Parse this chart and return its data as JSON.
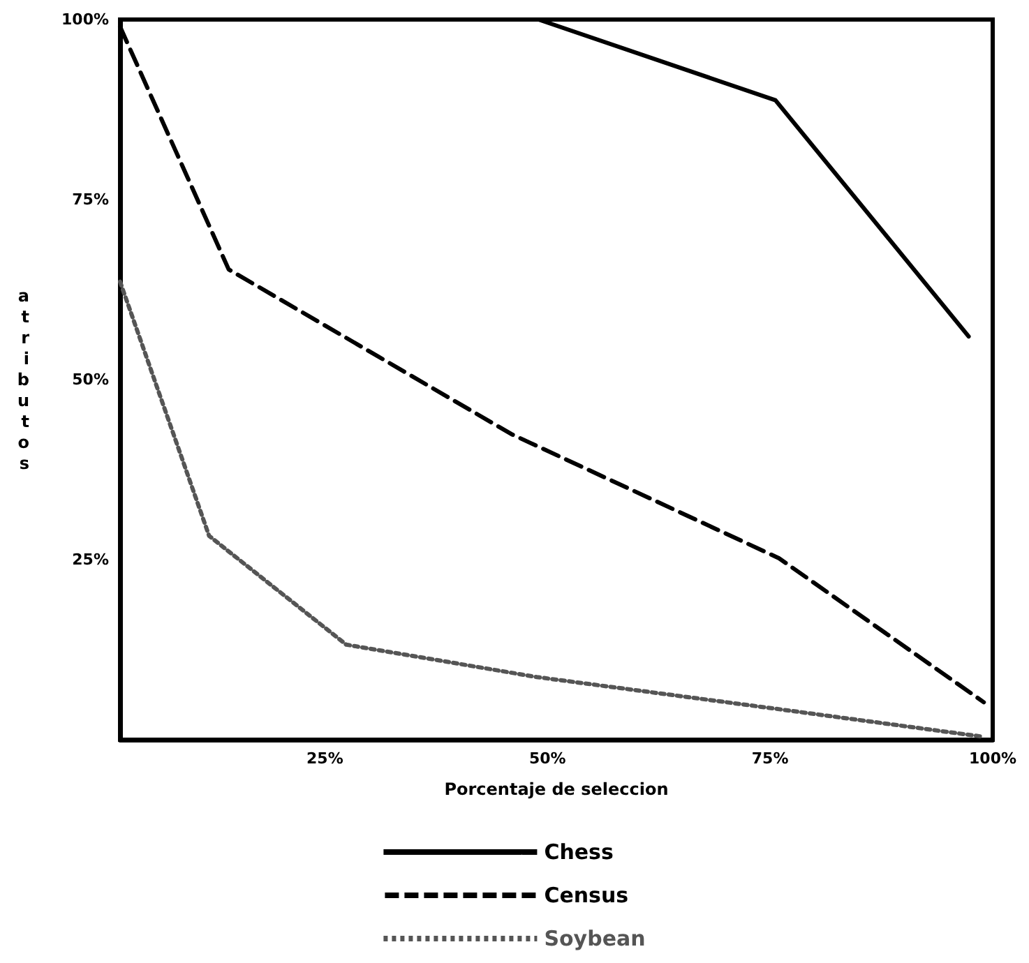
{
  "chart_data": {
    "type": "line",
    "xlabel": "Porcentaje de seleccion",
    "ylabel": "atributos",
    "xlim": [
      2,
      100
    ],
    "xticks": [
      {
        "value": 25,
        "label": "25%"
      },
      {
        "value": 50,
        "label": "50%"
      },
      {
        "value": 75,
        "label": "75%"
      },
      {
        "value": 100,
        "label": "100%"
      }
    ],
    "ylim": [
      0,
      100
    ],
    "yticks": [
      {
        "value": 25,
        "label": "25%"
      },
      {
        "value": 50,
        "label": "50%"
      },
      {
        "value": 75,
        "label": "75%"
      },
      {
        "value": 100,
        "label": "100%"
      }
    ],
    "grid": false,
    "legend": "bottom",
    "marker": "none",
    "series": [
      {
        "name": "Chess",
        "color": "#000000",
        "line_style": "solid",
        "x": [
          2,
          49,
          75.6,
          97.3
        ],
        "values": [
          100,
          100,
          88.8,
          56
        ]
      },
      {
        "name": "Census",
        "color": "#000000",
        "line_style": "dashed",
        "x": [
          2,
          14.2,
          46,
          76,
          99
        ],
        "values": [
          99,
          65.3,
          42.4,
          25.2,
          5.2
        ]
      },
      {
        "name": "Soybean",
        "color": "#555555",
        "line_style": "dotted",
        "x": [
          2,
          12,
          27.4,
          48.8,
          75.6,
          99
        ],
        "values": [
          63.6,
          28.3,
          13.2,
          8.7,
          4.3,
          0.4
        ]
      }
    ]
  }
}
